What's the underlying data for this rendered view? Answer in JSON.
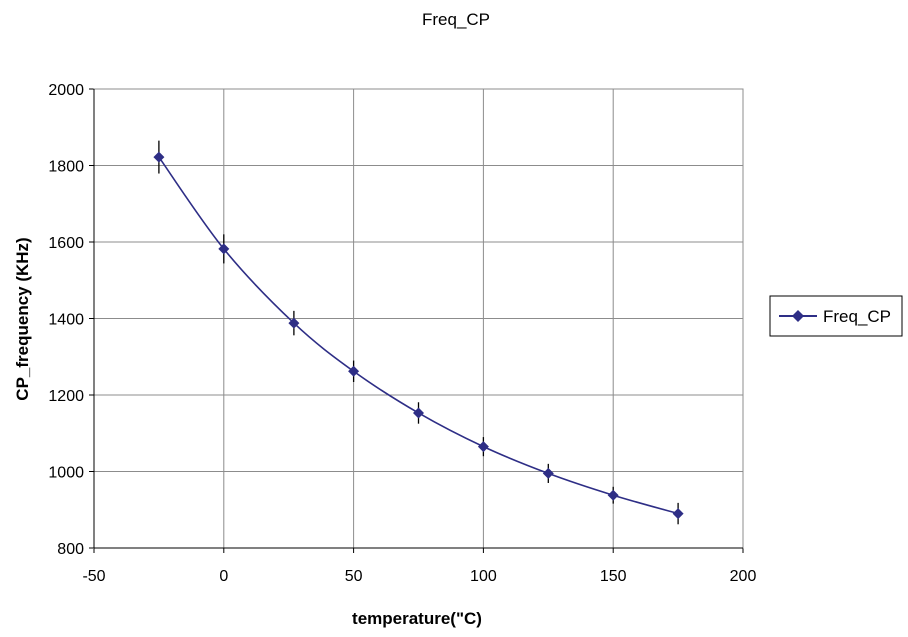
{
  "chart_data": {
    "type": "scatter",
    "title": "Freq_CP",
    "xlabel": "temperature(\"C)",
    "ylabel": "CP_frequency (KHz)",
    "xlim": [
      -50,
      200
    ],
    "ylim": [
      800,
      2000
    ],
    "x_ticks": [
      -50,
      0,
      50,
      100,
      150,
      200
    ],
    "y_ticks": [
      800,
      1000,
      1200,
      1400,
      1600,
      1800,
      2000
    ],
    "grid": true,
    "legend_position": "right",
    "smooth_line": true,
    "series": [
      {
        "name": "Freq_CP",
        "color": "#2e2e86",
        "marker": "diamond",
        "x": [
          -25,
          0,
          27,
          50,
          75,
          100,
          125,
          150,
          175
        ],
        "y": [
          1822,
          1582,
          1388,
          1262,
          1153,
          1065,
          995,
          938,
          890
        ],
        "error": [
          43,
          38,
          32,
          28,
          28,
          25,
          25,
          22,
          28
        ]
      }
    ]
  }
}
